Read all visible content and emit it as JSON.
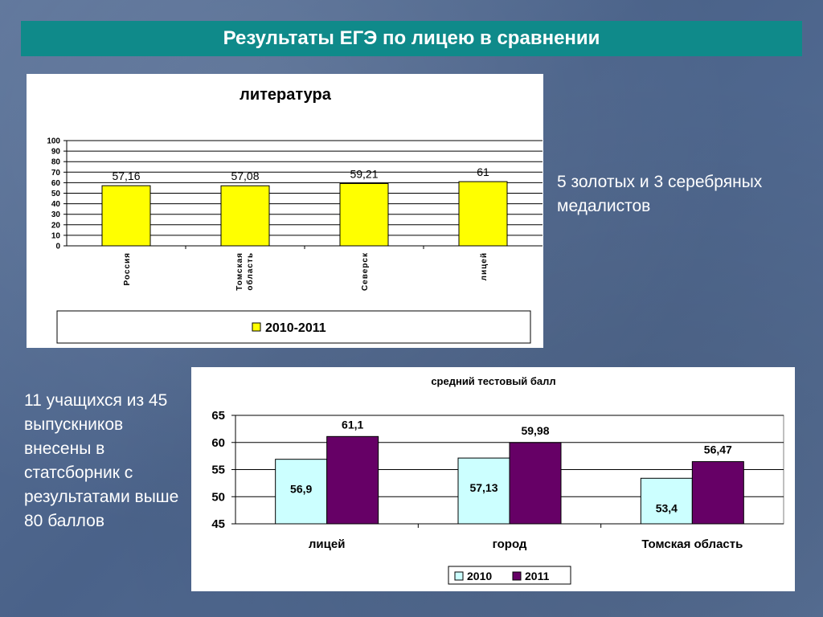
{
  "slide": {
    "title": "Результаты ЕГЭ по лицею в сравнении",
    "note_medals": "5 золотых и 3 серебряных медалистов",
    "note_students": "11 учащихся из 45 выпускников внесены в статсборник с результатами выше 80 баллов"
  },
  "chart_data": [
    {
      "type": "bar",
      "title": "литература",
      "categories": [
        "Россия",
        "Томская область",
        "Северск",
        "лицей"
      ],
      "value_labels": [
        "57,16",
        "57,08",
        "59,21",
        "61"
      ],
      "series": [
        {
          "name": "2010-2011",
          "values": [
            57.16,
            57.08,
            59.21,
            61
          ],
          "color": "#ffff00"
        }
      ],
      "ylim": [
        0,
        100
      ],
      "yticks": [
        0,
        10,
        20,
        30,
        40,
        50,
        60,
        70,
        80,
        90,
        100
      ],
      "grid": true,
      "legend": "bottom"
    },
    {
      "type": "bar",
      "title": "средний тестовый балл",
      "categories": [
        "лицей",
        "город",
        "Томская область"
      ],
      "series": [
        {
          "name": "2010",
          "values": [
            56.9,
            57.13,
            53.4
          ],
          "labels": [
            "56,9",
            "57,13",
            "53,4"
          ],
          "color": "#ccffff"
        },
        {
          "name": "2011",
          "values": [
            61.1,
            59.98,
            56.47
          ],
          "labels": [
            "61,1",
            "59,98",
            "56,47"
          ],
          "color": "#660066"
        }
      ],
      "ylim": [
        45,
        65
      ],
      "yticks": [
        45,
        50,
        55,
        60,
        65
      ],
      "grid": true,
      "legend": "bottom"
    }
  ]
}
